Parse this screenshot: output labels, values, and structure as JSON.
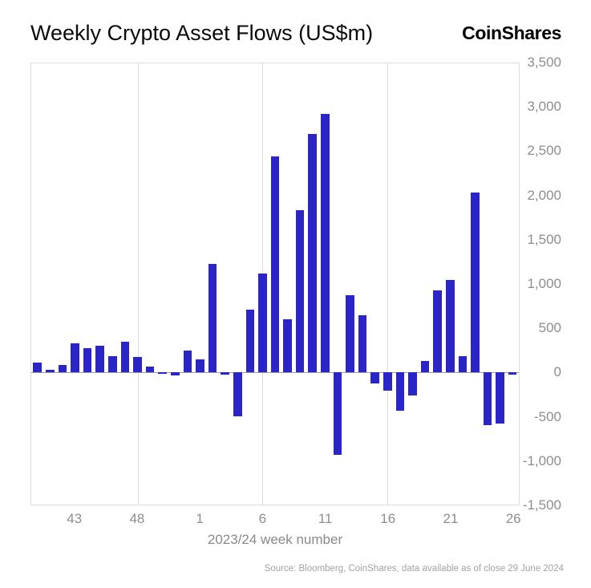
{
  "header": {
    "title": "Weekly Crypto Asset Flows (US$m)",
    "logo_text": "CoinShares"
  },
  "footer": {
    "source": "Source: Bloomberg, CoinShares, data available as of close 29 June 2024"
  },
  "chart_data": {
    "type": "bar",
    "title": "Weekly Crypto Asset Flows (US$m)",
    "xlabel": "2023/24 week number",
    "ylabel": "",
    "y_axis_side": "right",
    "ylim": [
      -1500,
      3500
    ],
    "grid": "vertical-partial-plus-zero-line",
    "legend": false,
    "bar_color": "#2b25c7",
    "weeks": [
      40,
      41,
      42,
      43,
      44,
      45,
      46,
      47,
      48,
      49,
      50,
      51,
      52,
      1,
      2,
      3,
      4,
      5,
      6,
      7,
      8,
      9,
      10,
      11,
      12,
      13,
      14,
      15,
      16,
      17,
      18,
      19,
      20,
      21,
      22,
      23,
      24,
      25,
      26
    ],
    "values": [
      105,
      25,
      80,
      330,
      270,
      300,
      180,
      350,
      170,
      60,
      -20,
      -35,
      245,
      150,
      1230,
      -30,
      -500,
      710,
      1120,
      2450,
      600,
      1840,
      2700,
      2930,
      -940,
      870,
      645,
      -130,
      -205,
      -435,
      -260,
      130,
      930,
      1050,
      185,
      2040,
      -600,
      -585,
      -30
    ],
    "yticks": [
      {
        "value": 3500,
        "label": "3,500"
      },
      {
        "value": 3000,
        "label": "3,000"
      },
      {
        "value": 2500,
        "label": "2,500"
      },
      {
        "value": 2000,
        "label": "2,000"
      },
      {
        "value": 1500,
        "label": "1,500"
      },
      {
        "value": 1000,
        "label": "1,000"
      },
      {
        "value": 500,
        "label": "500"
      },
      {
        "value": 0,
        "label": "0"
      },
      {
        "value": -500,
        "label": "-500"
      },
      {
        "value": -1000,
        "label": "-1,000"
      },
      {
        "value": -1500,
        "label": "-1,500"
      }
    ],
    "xticks": [
      {
        "index": 3,
        "label": "43"
      },
      {
        "index": 8,
        "label": "48"
      },
      {
        "index": 13,
        "label": "1"
      },
      {
        "index": 18,
        "label": "6"
      },
      {
        "index": 23,
        "label": "11"
      },
      {
        "index": 28,
        "label": "16"
      },
      {
        "index": 33,
        "label": "21"
      },
      {
        "index": 38,
        "label": "26"
      }
    ],
    "grid_week_indices": [
      8,
      18,
      28
    ]
  }
}
